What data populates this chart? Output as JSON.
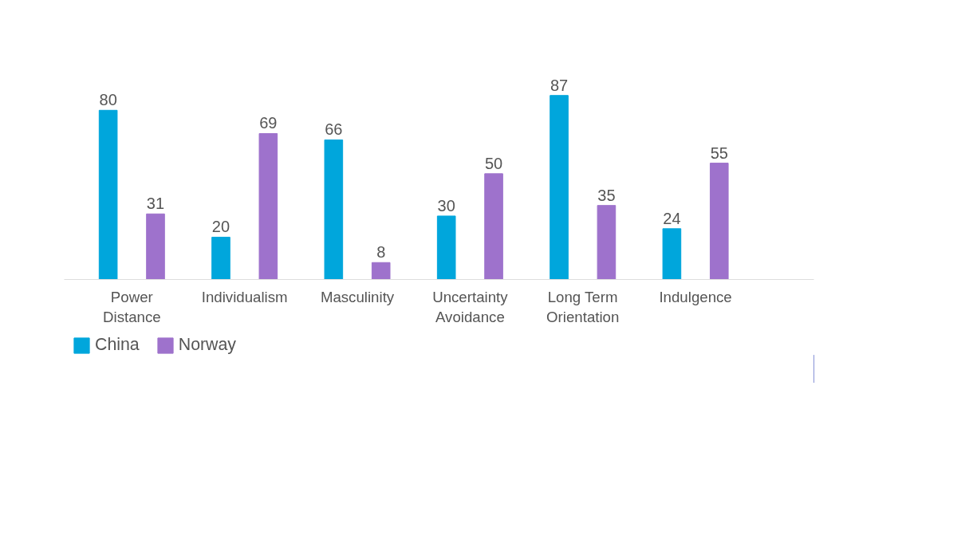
{
  "chart_data": {
    "type": "bar",
    "categories": [
      "Power Distance",
      "Individualism",
      "Masculinity",
      "Uncertainty Avoidance",
      "Long Term Orientation",
      "Indulgence"
    ],
    "series": [
      {
        "name": "China",
        "color": "#00a6dc",
        "values": [
          80,
          20,
          66,
          30,
          87,
          24
        ]
      },
      {
        "name": "Norway",
        "color": "#9e72cc",
        "values": [
          31,
          69,
          8,
          50,
          35,
          55
        ]
      }
    ],
    "data_labels": true,
    "legend": "bottom left",
    "grid": false
  }
}
